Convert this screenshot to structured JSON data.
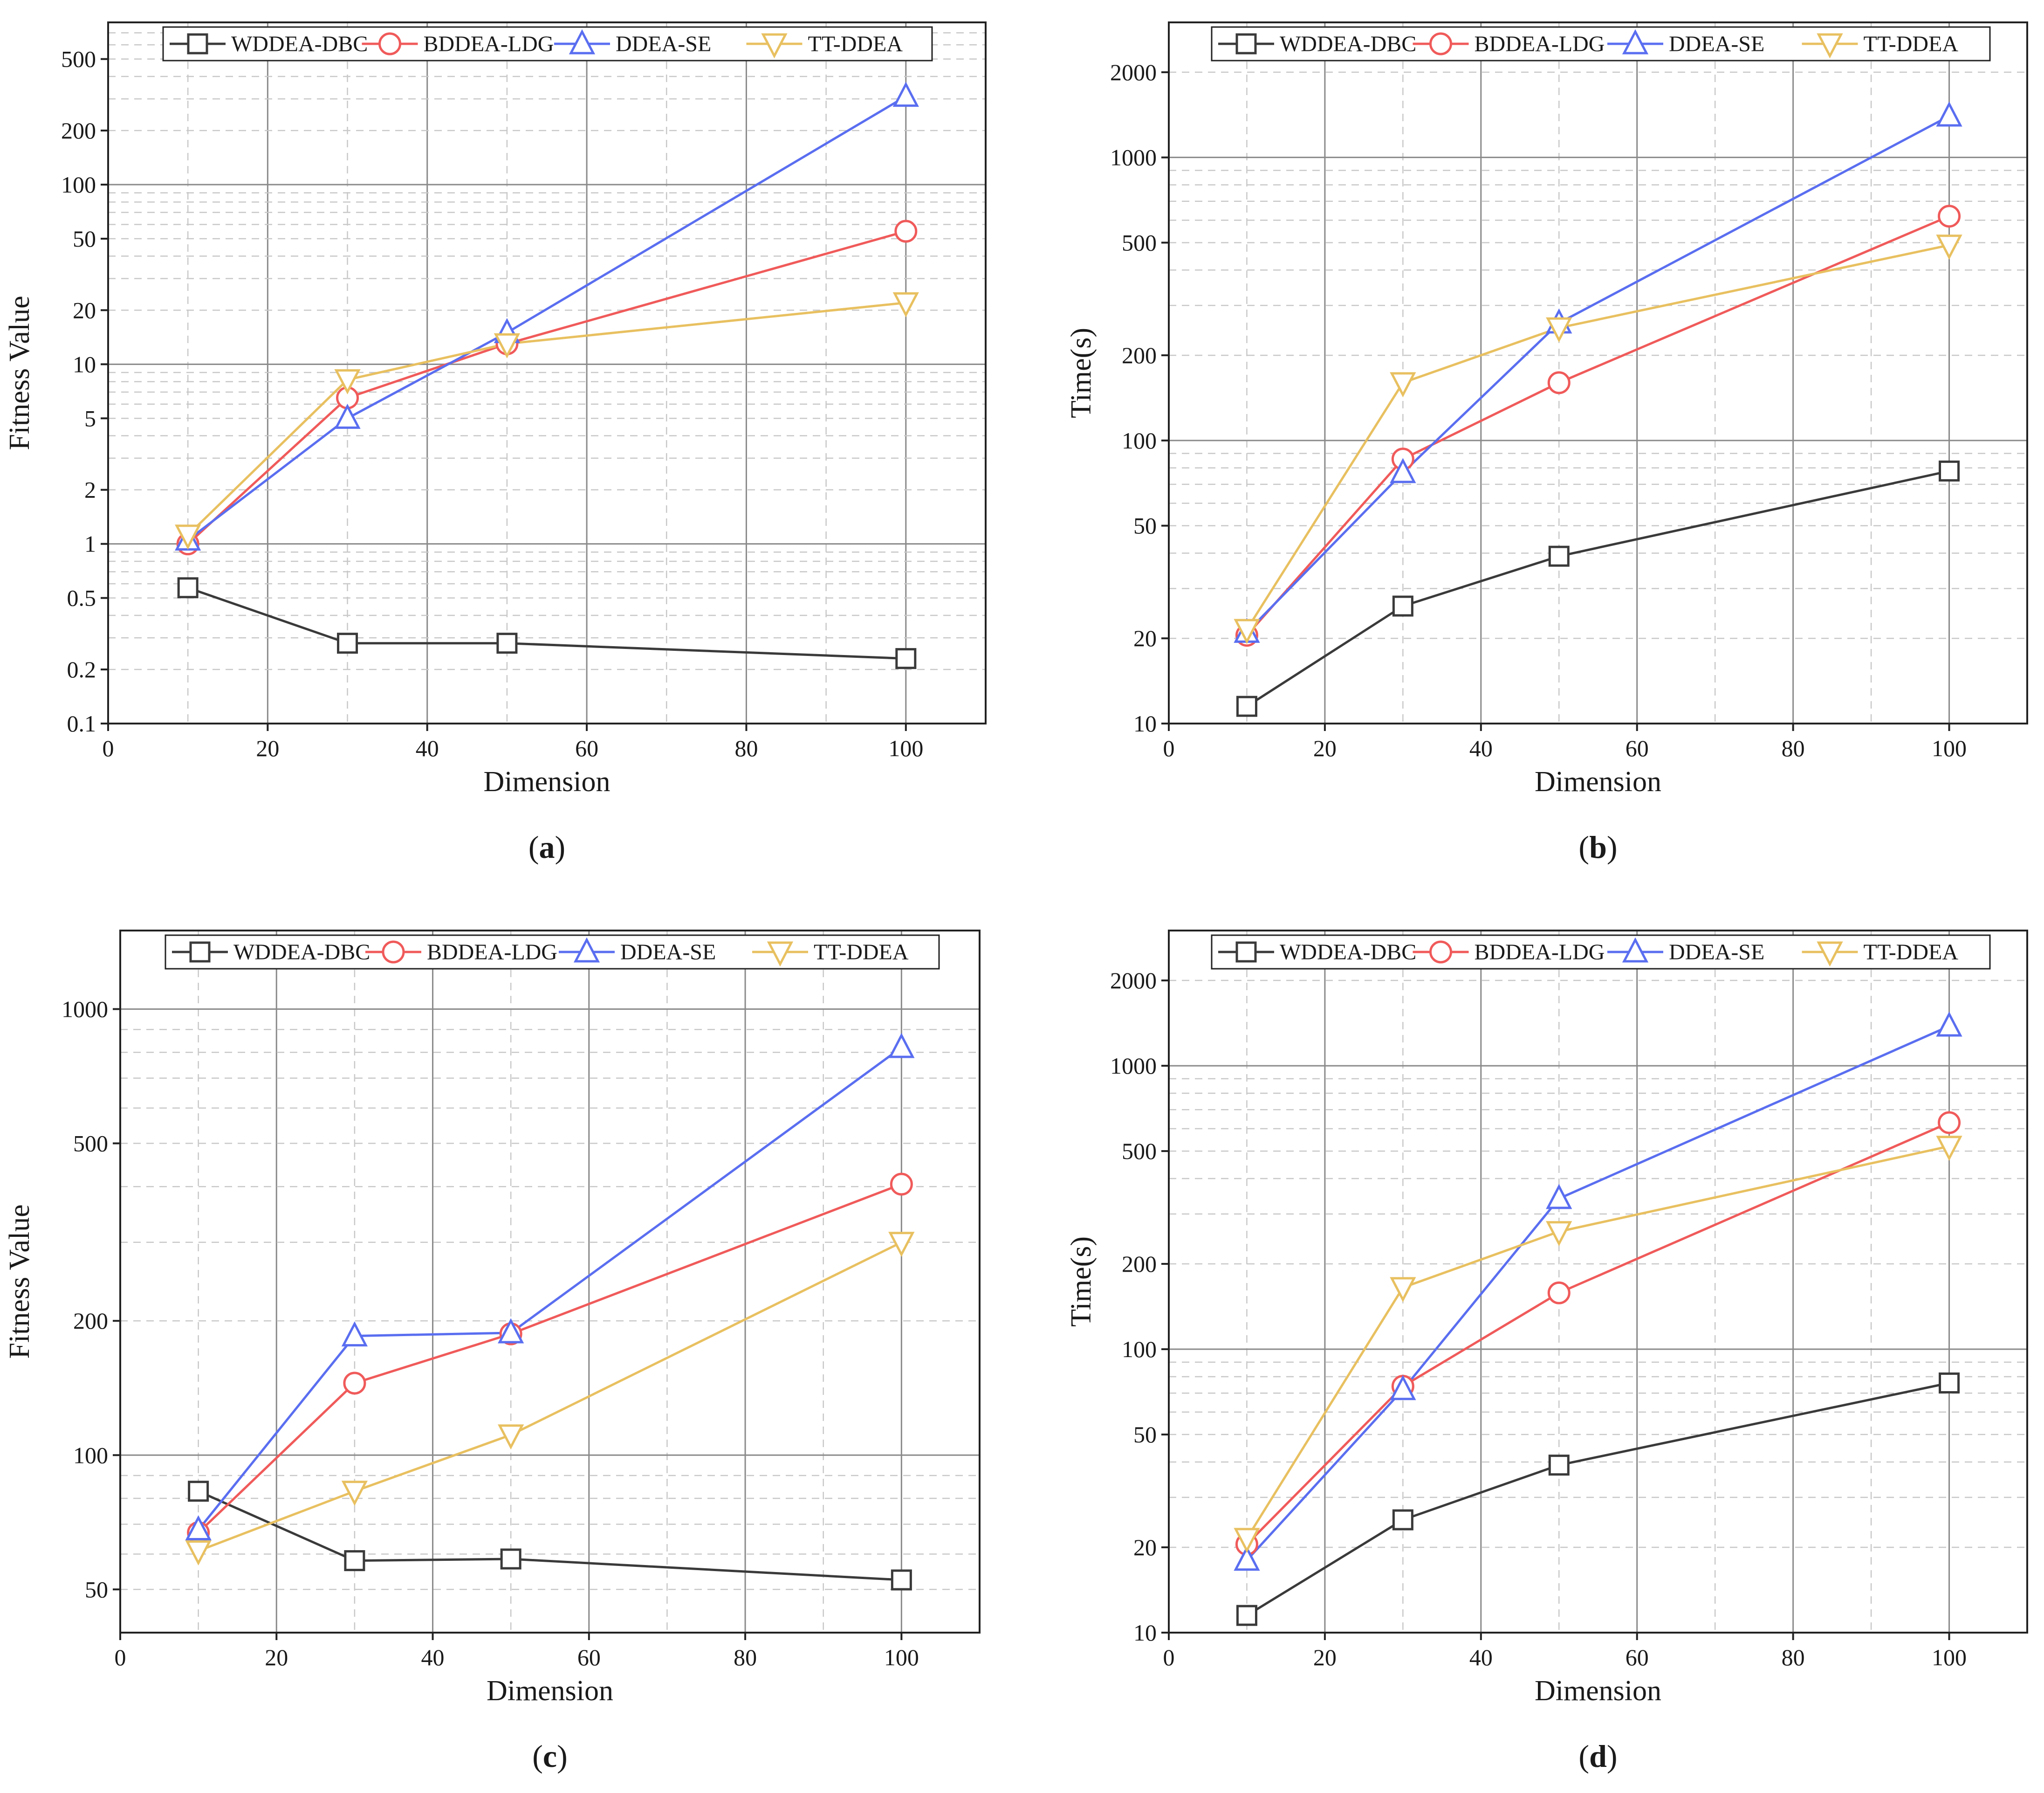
{
  "legend": [
    "WDDEA-DBC",
    "BDDEA-LDG",
    "DDEA-SE",
    "TT-DDEA"
  ],
  "colors": {
    "WDDEA-DBC": "#3a3a3a",
    "BDDEA-LDG": "#f05a5a",
    "DDEA-SE": "#5a6ef0",
    "TT-DDEA": "#e8c060"
  },
  "markers": {
    "WDDEA-DBC": "square",
    "BDDEA-LDG": "circle",
    "DDEA-SE": "triangle-up",
    "TT-DDEA": "triangle-down"
  },
  "chart_data": [
    {
      "id": "a",
      "caption": {
        "open": "(",
        "letter": "a",
        "close": ")"
      },
      "type": "line",
      "xlabel": "Dimension",
      "ylabel": "Fitness Value",
      "yscale": "log",
      "xlim": [
        0,
        110
      ],
      "ylim": [
        0.1,
        800
      ],
      "xticks": [
        0,
        20,
        40,
        60,
        80,
        100
      ],
      "yticks": [
        0.1,
        0.2,
        0.5,
        1,
        2,
        5,
        10,
        20,
        50,
        100,
        200,
        500
      ],
      "ytick_labels": [
        "0.1",
        "0.2",
        "0.5",
        "1",
        "2",
        "5",
        "10",
        "20",
        "50",
        "100",
        "200",
        "500"
      ],
      "grid": true,
      "legend_position": "top",
      "x": [
        10,
        30,
        50,
        100
      ],
      "series": [
        {
          "name": "WDDEA-DBC",
          "values": [
            0.57,
            0.28,
            0.28,
            0.23
          ]
        },
        {
          "name": "BDDEA-LDG",
          "values": [
            1.0,
            6.5,
            13,
            55
          ]
        },
        {
          "name": "DDEA-SE",
          "values": [
            1.05,
            5.0,
            15,
            310
          ]
        },
        {
          "name": "TT-DDEA",
          "values": [
            1.12,
            8.2,
            13,
            22
          ]
        }
      ]
    },
    {
      "id": "b",
      "caption": {
        "open": "(",
        "letter": "b",
        "close": ")"
      },
      "type": "line",
      "xlabel": "Dimension",
      "ylabel": "Time(s)",
      "yscale": "log",
      "xlim": [
        0,
        110
      ],
      "ylim": [
        10,
        3000
      ],
      "xticks": [
        0,
        20,
        40,
        60,
        80,
        100
      ],
      "yticks": [
        10,
        20,
        50,
        100,
        200,
        500,
        1000,
        2000
      ],
      "ytick_labels": [
        "10",
        "20",
        "50",
        "100",
        "200",
        "500",
        "1000",
        "2000"
      ],
      "grid": true,
      "legend_position": "top",
      "x": [
        10,
        30,
        50,
        100
      ],
      "series": [
        {
          "name": "WDDEA-DBC",
          "values": [
            11.5,
            26,
            39,
            78
          ]
        },
        {
          "name": "BDDEA-LDG",
          "values": [
            20.5,
            86,
            160,
            620
          ]
        },
        {
          "name": "DDEA-SE",
          "values": [
            21,
            77,
            260,
            1400
          ]
        },
        {
          "name": "TT-DDEA",
          "values": [
            21.5,
            160,
            250,
            490
          ]
        }
      ]
    },
    {
      "id": "c",
      "caption": {
        "open": "(",
        "letter": "c",
        "close": ")"
      },
      "type": "line",
      "xlabel": "Dimension",
      "ylabel": "Fitness Value",
      "yscale": "log",
      "xlim": [
        0,
        110
      ],
      "ylim": [
        40,
        1500
      ],
      "xticks": [
        0,
        20,
        40,
        60,
        80,
        100
      ],
      "yticks": [
        50,
        100,
        200,
        500,
        1000
      ],
      "ytick_labels": [
        "50",
        "100",
        "200",
        "500",
        "1000"
      ],
      "grid": true,
      "legend_position": "top",
      "x": [
        10,
        30,
        50,
        100
      ],
      "series": [
        {
          "name": "WDDEA-DBC",
          "values": [
            83,
            58,
            58.5,
            52.5
          ]
        },
        {
          "name": "BDDEA-LDG",
          "values": [
            67,
            145,
            187,
            405
          ]
        },
        {
          "name": "DDEA-SE",
          "values": [
            68,
            185,
            188,
            820
          ]
        },
        {
          "name": "TT-DDEA",
          "values": [
            61,
            83,
            111,
            300
          ]
        }
      ]
    },
    {
      "id": "d",
      "caption": {
        "open": "(",
        "letter": "d",
        "close": ")"
      },
      "type": "line",
      "xlabel": "Dimension",
      "ylabel": "Time(s)",
      "yscale": "log",
      "xlim": [
        0,
        110
      ],
      "ylim": [
        10,
        3000
      ],
      "xticks": [
        0,
        20,
        40,
        60,
        80,
        100
      ],
      "yticks": [
        10,
        20,
        50,
        100,
        200,
        500,
        1000,
        2000
      ],
      "ytick_labels": [
        "10",
        "20",
        "50",
        "100",
        "200",
        "500",
        "1000",
        "2000"
      ],
      "grid": true,
      "legend_position": "top",
      "x": [
        10,
        30,
        50,
        100
      ],
      "series": [
        {
          "name": "WDDEA-DBC",
          "values": [
            11.5,
            25,
            39,
            76
          ]
        },
        {
          "name": "BDDEA-LDG",
          "values": [
            20.5,
            74,
            158,
            630
          ]
        },
        {
          "name": "DDEA-SE",
          "values": [
            18,
            72,
            340,
            1380
          ]
        },
        {
          "name": "TT-DDEA",
          "values": [
            21.5,
            165,
            260,
            520
          ]
        }
      ]
    }
  ]
}
